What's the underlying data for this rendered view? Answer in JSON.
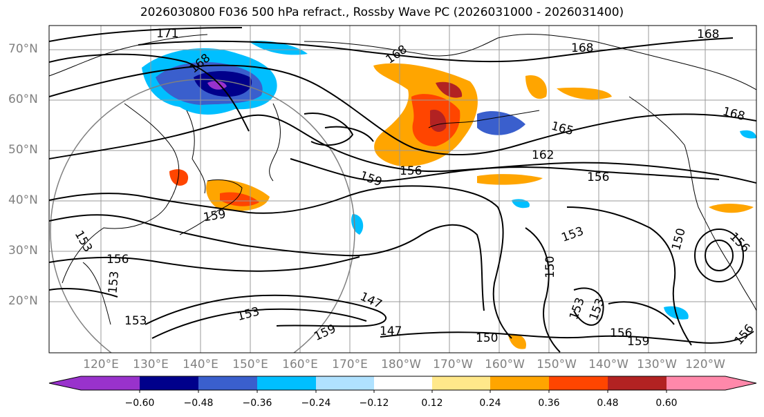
{
  "title": "2026030800 F036 500 hPa refract., Rossby Wave PC (2026031000 - 2026031400)",
  "latitude_labels": [
    "70°N",
    "60°N",
    "50°N",
    "40°N",
    "30°N",
    "20°N"
  ],
  "longitude_labels": [
    "120°E",
    "130°E",
    "140°E",
    "150°E",
    "160°E",
    "170°E",
    "180°W",
    "170°W",
    "160°W",
    "150°W",
    "140°W",
    "130°W",
    "120°W"
  ],
  "contour_labels": [
    "171",
    "168",
    "168",
    "168",
    "168",
    "168",
    "165",
    "162",
    "159",
    "159",
    "159",
    "159",
    "156",
    "156",
    "156",
    "156",
    "156",
    "156",
    "153",
    "153",
    "153",
    "153",
    "153",
    "150",
    "150",
    "150",
    "147",
    "147",
    "153",
    "153"
  ],
  "colorbar": {
    "tick_labels": [
      "−0.60",
      "−0.48",
      "−0.36",
      "−0.24",
      "−0.12",
      "0.12",
      "0.24",
      "0.36",
      "0.48",
      "0.60"
    ],
    "colors": [
      "#9932cc",
      "#00008b",
      "#3a5fcd",
      "#00bfff",
      "#b0e2ff",
      "#ffffff",
      "#ffe88a",
      "#ffa500",
      "#ff4500",
      "#b22222",
      "#ff88aa"
    ]
  }
}
